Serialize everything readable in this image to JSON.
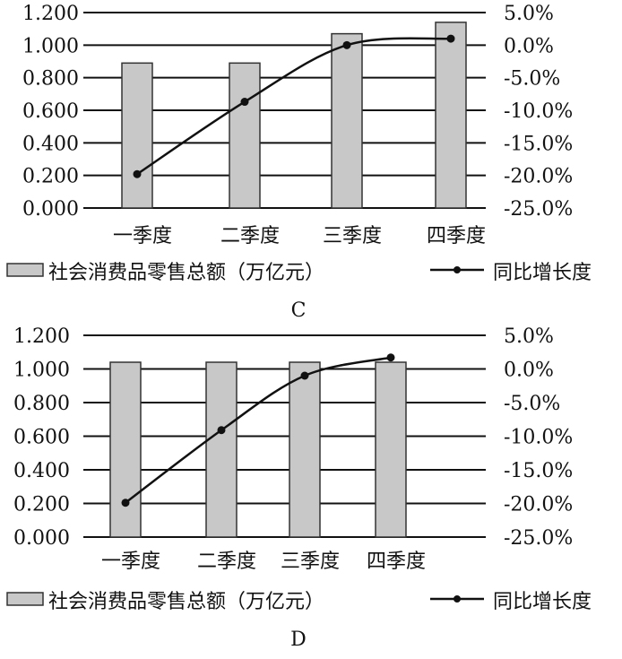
{
  "chart_data": [
    {
      "type": "bar+line",
      "panel_label": "C",
      "categories": [
        "一季度",
        "二季度",
        "三季度",
        "四季度"
      ],
      "series": [
        {
          "name": "社会消费品零售总额（万亿元）",
          "axis": "left",
          "kind": "bar",
          "values": [
            0.89,
            0.89,
            1.07,
            1.14
          ]
        },
        {
          "name": "同比增长度",
          "axis": "right",
          "kind": "line",
          "values": [
            -19.8,
            -8.7,
            0.0,
            1.0
          ]
        }
      ],
      "left_axis": {
        "ylim": [
          0,
          1.2
        ],
        "ticks": [
          "1.200",
          "1.000",
          "0.800",
          "0.600",
          "0.400",
          "0.200",
          "0.000"
        ]
      },
      "right_axis": {
        "ylim": [
          -25,
          5
        ],
        "ticks": [
          "5.0%",
          "0.0%",
          "-5.0%",
          "-10.0%",
          "-15.0%",
          "-20.0%",
          "-25.0%"
        ]
      },
      "grid": true,
      "legend": [
        "社会消费品零售总额（万亿元）",
        "同比增长度"
      ]
    },
    {
      "type": "bar+line",
      "panel_label": "D",
      "categories": [
        "一季度",
        "二季度",
        "三季度",
        "四季度"
      ],
      "series": [
        {
          "name": "社会消费品零售总额（万亿元）",
          "axis": "left",
          "kind": "bar",
          "values": [
            1.04,
            1.04,
            1.04,
            1.04
          ]
        },
        {
          "name": "同比增长度",
          "axis": "right",
          "kind": "line",
          "values": [
            -19.9,
            -9.1,
            -1.0,
            1.7
          ]
        }
      ],
      "left_axis": {
        "ylim": [
          0,
          1.2
        ],
        "ticks": [
          "1.200",
          "1.000",
          "0.800",
          "0.600",
          "0.400",
          "0.200",
          "0.000"
        ]
      },
      "right_axis": {
        "ylim": [
          -25,
          5
        ],
        "ticks": [
          "5.0%",
          "0.0%",
          "-5.0%",
          "-10.0%",
          "-15.0%",
          "-20.0%",
          "-25.0%"
        ]
      },
      "grid": true,
      "legend": [
        "社会消费品零售总额（万亿元）",
        "同比增长度"
      ]
    }
  ],
  "colors": {
    "bar_fill": "#c8c8c8",
    "bar_stroke": "#333333",
    "line": "#111111",
    "grid": "#111111"
  }
}
